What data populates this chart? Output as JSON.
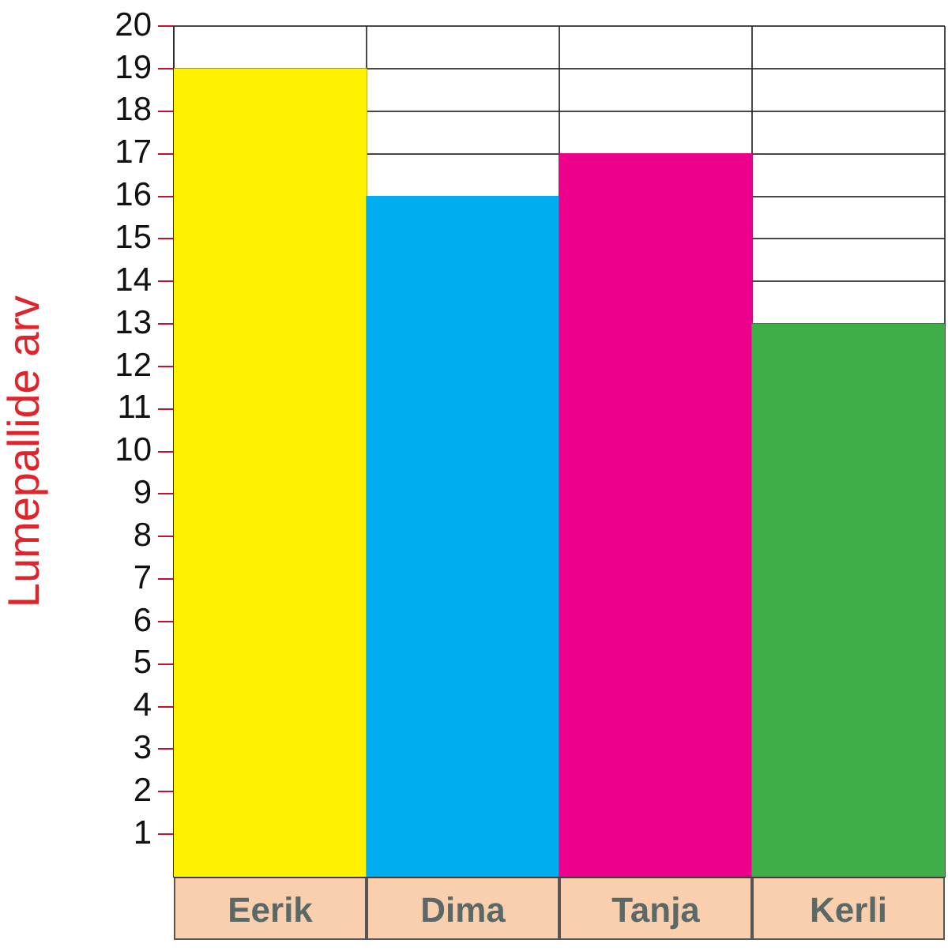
{
  "chart_data": {
    "type": "bar",
    "categories": [
      "Eerik",
      "Dima",
      "Tanja",
      "Kerli"
    ],
    "values": [
      19,
      16,
      17,
      13
    ],
    "colors": [
      "#fff200",
      "#00aeef",
      "#ec008c",
      "#3fae49"
    ],
    "ylabel": "Lumepallide arv",
    "ylim": [
      0,
      20
    ],
    "yticks": [
      1,
      2,
      3,
      4,
      5,
      6,
      7,
      8,
      9,
      10,
      11,
      12,
      13,
      14,
      15,
      16,
      17,
      18,
      19,
      20
    ],
    "grid": true,
    "legend": false
  }
}
